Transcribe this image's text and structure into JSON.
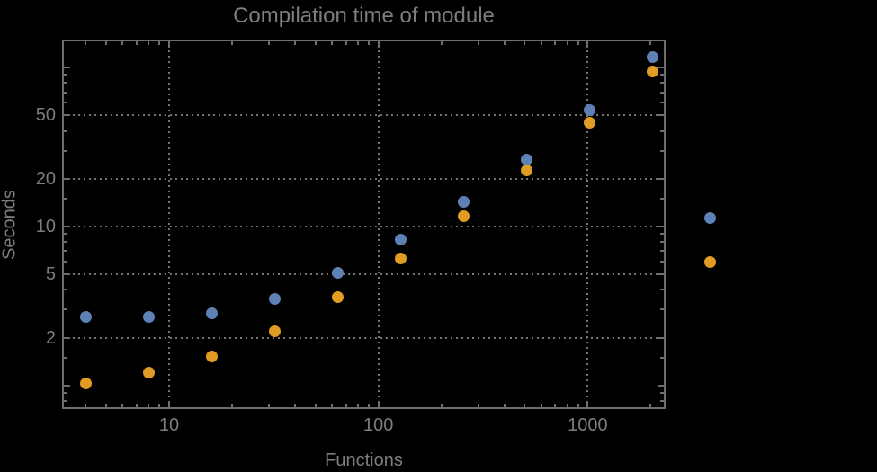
{
  "window": {
    "background": "#000000"
  },
  "chart_data": {
    "type": "scatter",
    "title": "Compilation time of module",
    "xlabel": "Functions",
    "ylabel": "Seconds",
    "x_scale": "log",
    "y_scale": "log",
    "x_range": [
      3.08,
      2355
    ],
    "y_range": [
      0.711,
      150
    ],
    "grid": true,
    "grid_style": "dotted",
    "x_gridlines": [
      10,
      100,
      1000
    ],
    "y_gridlines": [
      2,
      5,
      10,
      20,
      50
    ],
    "x_ticks_major": [
      {
        "value": 10,
        "label": "10"
      },
      {
        "value": 100,
        "label": "100"
      },
      {
        "value": 1000,
        "label": "1000"
      }
    ],
    "x_ticks_minor": [
      4,
      5,
      6,
      7,
      8,
      9,
      20,
      30,
      40,
      50,
      60,
      70,
      80,
      90,
      200,
      300,
      400,
      500,
      600,
      700,
      800,
      900,
      2000
    ],
    "y_ticks_major": [
      {
        "value": 1,
        "label": ""
      },
      {
        "value": 2,
        "label": "2"
      },
      {
        "value": 5,
        "label": "5"
      },
      {
        "value": 10,
        "label": "10"
      },
      {
        "value": 20,
        "label": "20"
      },
      {
        "value": 50,
        "label": "50"
      },
      {
        "value": 100,
        "label": ""
      }
    ],
    "y_ticks_minor": [
      0.8,
      0.9,
      1.5,
      3,
      4,
      6,
      7,
      8,
      9,
      15,
      30,
      40,
      60,
      70,
      80,
      90
    ],
    "x": [
      4,
      8,
      16,
      32,
      64,
      128,
      256,
      512,
      1024,
      2048
    ],
    "series": [
      {
        "name": "blue",
        "color": "#5e81b5",
        "values": [
          2.7,
          2.7,
          2.85,
          3.5,
          5.1,
          8.3,
          14.3,
          26.5,
          54,
          116
        ]
      },
      {
        "name": "orange",
        "color": "#e19c24",
        "values": [
          1.03,
          1.2,
          1.53,
          2.2,
          3.6,
          6.3,
          11.6,
          22.7,
          45,
          95
        ]
      }
    ],
    "legend": {
      "position": "right-outside",
      "entries": [
        {
          "name": "blue",
          "color": "#5e81b5",
          "label": ""
        },
        {
          "name": "orange",
          "color": "#e19c24",
          "label": ""
        }
      ]
    }
  },
  "colors": {
    "background": "#000000",
    "frame": "#6e6e6e",
    "grid": "#757575",
    "text": "#7d7d7d",
    "series_blue": "#5e81b5",
    "series_orange": "#e19c24"
  }
}
